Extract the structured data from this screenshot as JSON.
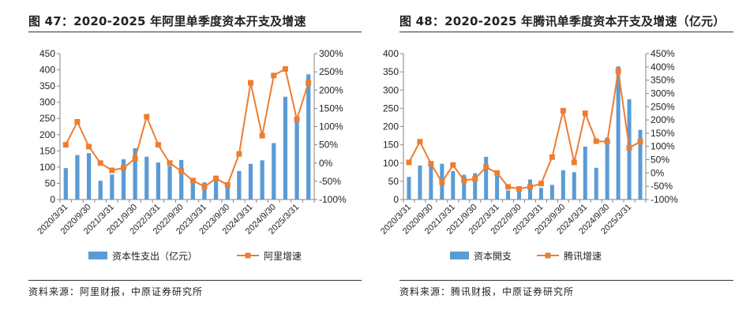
{
  "chart_data": [
    {
      "type": "bar+line",
      "title": "图 47：2020-2025 年阿里单季度资本开支及增速",
      "source": "资料来源：阿里财报，中原证券研究所",
      "categories": [
        "2020/3/31",
        "2020/6/30",
        "2020/9/30",
        "2020/12/31",
        "2021/3/31",
        "2021/6/30",
        "2021/9/30",
        "2021/12/31",
        "2022/3/31",
        "2022/6/30",
        "2022/9/30",
        "2022/12/31",
        "2023/3/31",
        "2023/6/30",
        "2023/9/30",
        "2023/12/31",
        "2024/3/31",
        "2024/6/30",
        "2024/9/30",
        "2024/12/31",
        "2025/3/31",
        "2025/6/30"
      ],
      "x_tick_labels": [
        "2020/3/31",
        "2020/9/30",
        "2021/3/31",
        "2021/9/30",
        "2022/3/31",
        "2022/9/30",
        "2023/3/31",
        "2023/9/30",
        "2024/3/31",
        "2024/9/30",
        "2025/3/31"
      ],
      "series": [
        {
          "name": "资本性支出（亿元）",
          "type": "bar",
          "axis": "left",
          "color": "#5b9bd5",
          "values": [
            97,
            137,
            143,
            58,
            77,
            124,
            158,
            132,
            114,
            103,
            122,
            65,
            53,
            63,
            48,
            88,
            110,
            121,
            174,
            317,
            245,
            386
          ]
        },
        {
          "name": "阿里增速",
          "type": "line",
          "axis": "right",
          "color": "#ed7d31",
          "values": [
            50,
            113,
            45,
            0,
            -20,
            -13,
            12,
            127,
            50,
            0,
            -22,
            -48,
            -65,
            -42,
            -60,
            25,
            220,
            75,
            240,
            258,
            120,
            220
          ]
        }
      ],
      "left_axis": {
        "min": 0,
        "max": 450,
        "step": 50
      },
      "right_axis": {
        "min": -100,
        "max": 300,
        "step": 50,
        "format": "percent"
      }
    },
    {
      "type": "bar+line",
      "title": "图 48：2020-2025 年腾讯单季度资本开支及增速（亿元）",
      "source": "资料来源：腾讯财报，中原证券研究所",
      "categories": [
        "2020/3/31",
        "2020/6/30",
        "2020/9/30",
        "2020/12/31",
        "2021/3/31",
        "2021/6/30",
        "2021/9/30",
        "2021/12/31",
        "2022/3/31",
        "2022/6/30",
        "2022/9/30",
        "2022/12/31",
        "2023/3/31",
        "2023/6/30",
        "2023/9/30",
        "2023/12/31",
        "2024/3/31",
        "2024/6/30",
        "2024/9/30",
        "2024/12/31",
        "2025/3/31",
        "2025/6/30"
      ],
      "x_tick_labels": [
        "2020/3/31",
        "2020/9/30",
        "2021/3/31",
        "2021/9/30",
        "2022/3/31",
        "2022/9/30",
        "2023/3/31",
        "2023/9/30",
        "2024/3/31",
        "2024/9/30",
        "2025/3/31"
      ],
      "series": [
        {
          "name": "资本開支",
          "type": "bar",
          "axis": "left",
          "color": "#5b9bd5",
          "values": [
            62,
            93,
            92,
            98,
            78,
            68,
            72,
            117,
            65,
            25,
            28,
            55,
            32,
            40,
            80,
            75,
            145,
            87,
            170,
            365,
            275,
            191
          ]
        },
        {
          "name": "腾讯增速",
          "type": "line",
          "axis": "right",
          "color": "#ed7d31",
          "values": [
            40,
            118,
            35,
            -35,
            30,
            -28,
            -22,
            22,
            0,
            -52,
            -60,
            -52,
            -40,
            60,
            235,
            40,
            225,
            120,
            118,
            385,
            95,
            118
          ]
        }
      ],
      "left_axis": {
        "min": 0,
        "max": 400,
        "step": 50
      },
      "right_axis": {
        "min": -100,
        "max": 450,
        "step": 50,
        "format": "percent"
      }
    }
  ]
}
